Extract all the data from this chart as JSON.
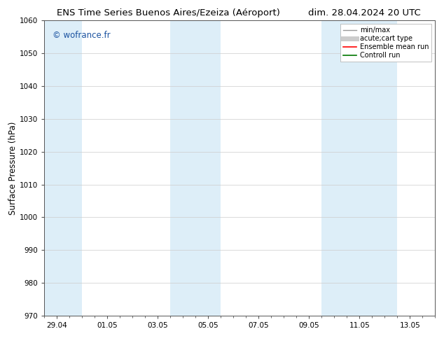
{
  "title_left": "ENS Time Series Buenos Aires/Ezeiza (Aéroport)",
  "title_right": "dim. 28.04.2024 20 UTC",
  "ylabel": "Surface Pressure (hPa)",
  "background_color": "#ffffff",
  "plot_bg_color": "#ffffff",
  "ylim": [
    970,
    1060
  ],
  "yticks": [
    970,
    980,
    990,
    1000,
    1010,
    1020,
    1030,
    1040,
    1050,
    1060
  ],
  "xtick_labels": [
    "29.04",
    "01.05",
    "03.05",
    "05.05",
    "07.05",
    "09.05",
    "11.05",
    "13.05"
  ],
  "xtick_positions": [
    0,
    2,
    4,
    6,
    8,
    10,
    12,
    14
  ],
  "shaded_regions": [
    {
      "xmin": -0.5,
      "xmax": 1.0
    },
    {
      "xmin": 4.5,
      "xmax": 6.5
    },
    {
      "xmin": 10.5,
      "xmax": 13.5
    }
  ],
  "shaded_color": "#ddeef8",
  "watermark": "© wofrance.fr",
  "watermark_color": "#1a52a0",
  "legend_entries": [
    {
      "label": "min/max",
      "color": "#999999",
      "lw": 1.0,
      "ls": "-"
    },
    {
      "label": "acute;cart type",
      "color": "#cccccc",
      "lw": 5,
      "ls": "-"
    },
    {
      "label": "Ensemble mean run",
      "color": "#ff0000",
      "lw": 1.2,
      "ls": "-"
    },
    {
      "label": "Controll run",
      "color": "#007700",
      "lw": 1.2,
      "ls": "-"
    }
  ],
  "xmin": -0.5,
  "xmax": 15.0,
  "title_fontsize": 9.5,
  "tick_fontsize": 7.5,
  "ylabel_fontsize": 8.5,
  "watermark_fontsize": 8.5,
  "legend_fontsize": 7.0
}
